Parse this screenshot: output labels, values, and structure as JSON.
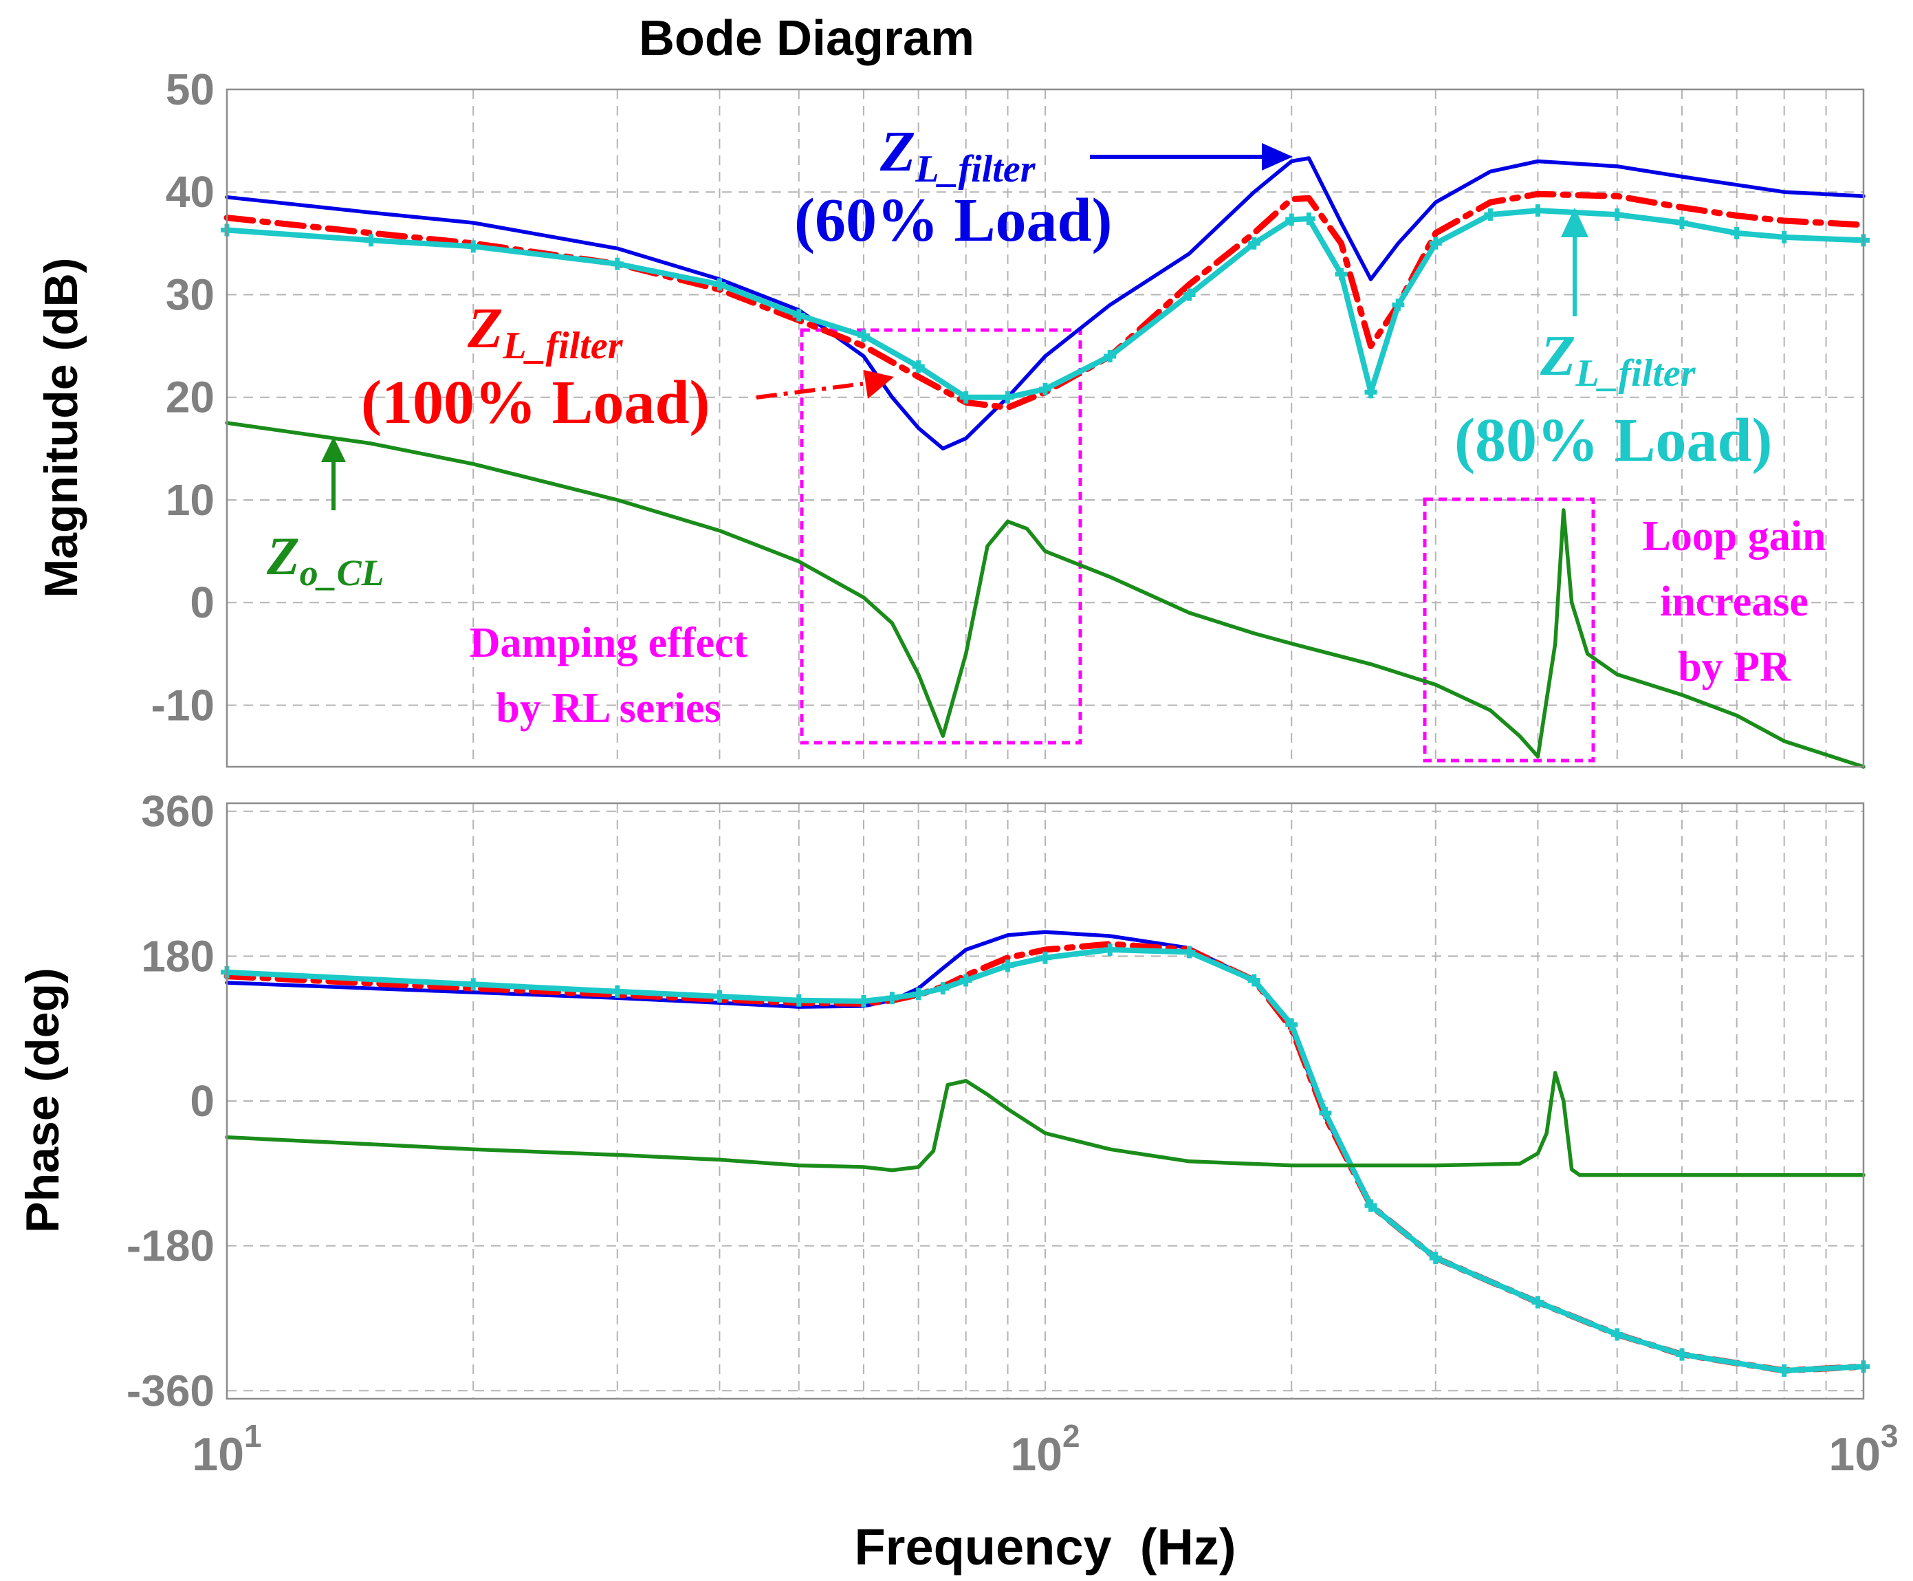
{
  "chart_data": {
    "type": "line",
    "title": "Bode Diagram",
    "xlabel": "Frequency  (Hz)",
    "xscale": "log",
    "xlim": [
      10,
      1000
    ],
    "x_ticks": [
      {
        "value": 10,
        "base": "10",
        "exp": "1"
      },
      {
        "value": 100,
        "base": "10",
        "exp": "2"
      },
      {
        "value": 1000,
        "base": "10",
        "exp": "3"
      }
    ],
    "colors": {
      "zl60": "#0000e6",
      "zl100": "#ff0000",
      "zl80": "#1cc8c8",
      "zocl": "#1a8c1a",
      "box": "#ff00ff",
      "grid": "#b4b4b4",
      "tick": "#808080"
    },
    "panels": [
      {
        "id": "magnitude",
        "ylabel": "Magnitude (dB)",
        "ylim": [
          -16,
          50
        ],
        "yticks": [
          50,
          40,
          30,
          20,
          10,
          0,
          -10
        ],
        "series": [
          {
            "name": "Z_L_filter (60% Load)",
            "color_key": "zl60",
            "style": "solid",
            "x": [
              10,
              15,
              20,
              30,
              40,
              50,
              60,
              65,
              70,
              75,
              80,
              90,
              100,
              120,
              150,
              180,
              200,
              210,
              230,
              250,
              270,
              300,
              350,
              400,
              500,
              600,
              700,
              800,
              1000
            ],
            "y": [
              39.5,
              38,
              37,
              34.5,
              31.5,
              28.5,
              24,
              20,
              17,
              15,
              16,
              20,
              24,
              29,
              34,
              40,
              43,
              43.3,
              37,
              31.5,
              35,
              39,
              42,
              43,
              42.5,
              41.5,
              40.7,
              40,
              39.6
            ]
          },
          {
            "name": "Z_L_filter (100% Load)",
            "color_key": "zl100",
            "style": "dashdot",
            "x": [
              10,
              15,
              20,
              30,
              40,
              50,
              60,
              70,
              80,
              90,
              100,
              120,
              150,
              180,
              200,
              210,
              230,
              250,
              270,
              300,
              350,
              400,
              500,
              600,
              700,
              800,
              1000
            ],
            "y": [
              37.5,
              36,
              35,
              33,
              30.5,
              27.5,
              25,
              22,
              19.5,
              19,
              20.5,
              24,
              31,
              36,
              39.3,
              39.4,
              35,
              25,
              29,
              36,
              39,
              39.8,
              39.6,
              38.5,
              37.7,
              37.2,
              36.8
            ]
          },
          {
            "name": "Z_L_filter (80% Load)",
            "color_key": "zl80",
            "style": "solid-markers",
            "x": [
              10,
              15,
              20,
              30,
              40,
              50,
              60,
              70,
              80,
              90,
              100,
              120,
              150,
              180,
              200,
              210,
              230,
              250,
              270,
              300,
              350,
              400,
              500,
              600,
              700,
              800,
              1000
            ],
            "y": [
              36.3,
              35.3,
              34.7,
              33,
              31,
              28,
              26,
              23,
              20,
              20,
              20.8,
              24,
              30,
              35,
              37.3,
              37.4,
              32,
              20.5,
              29,
              35,
              37.8,
              38.2,
              37.8,
              37,
              36,
              35.6,
              35.3
            ]
          },
          {
            "name": "Z_o_CL",
            "color_key": "zocl",
            "style": "solid",
            "x": [
              10,
              15,
              20,
              30,
              40,
              50,
              60,
              65,
              70,
              75,
              80,
              85,
              90,
              95,
              100,
              120,
              150,
              180,
              200,
              250,
              300,
              350,
              380,
              400,
              420,
              430,
              440,
              460,
              500,
              600,
              700,
              800,
              1000
            ],
            "y": [
              17.5,
              15.5,
              13.5,
              10,
              7,
              4,
              0.5,
              -2,
              -7,
              -13,
              -5,
              5.5,
              7.9,
              7.2,
              5,
              2.5,
              -1,
              -3,
              -4,
              -6,
              -8,
              -10.5,
              -13,
              -15,
              -4,
              9,
              0,
              -5,
              -7,
              -9,
              -11,
              -13.5,
              -16
            ]
          }
        ]
      },
      {
        "id": "phase",
        "ylabel": "Phase (deg)",
        "ylim": [
          -370,
          370
        ],
        "yticks": [
          360,
          180,
          0,
          -180,
          -360
        ],
        "series": [
          {
            "name": "Z_L_filter (60% Load)",
            "color_key": "zl60",
            "style": "solid",
            "x": [
              10,
              20,
              30,
              40,
              50,
              60,
              65,
              70,
              75,
              80,
              90,
              100,
              120,
              150,
              180,
              200,
              220,
              250,
              300,
              400,
              500,
              600,
              800,
              1000
            ],
            "y": [
              147,
              135,
              128,
              122,
              117,
              118,
              125,
              140,
              165,
              188,
              206,
              210,
              205,
              190,
              150,
              90,
              -20,
              -130,
              -195,
              -250,
              -290,
              -315,
              -335,
              -330
            ]
          },
          {
            "name": "Z_L_filter (100% Load)",
            "color_key": "zl100",
            "style": "dashdot",
            "x": [
              10,
              20,
              30,
              40,
              50,
              60,
              65,
              70,
              75,
              80,
              90,
              100,
              120,
              150,
              180,
              200,
              220,
              250,
              300,
              400,
              500,
              600,
              800,
              1000
            ],
            "y": [
              155,
              140,
              132,
              126,
              122,
              121,
              125,
              132,
              142,
              156,
              178,
              188,
              195,
              188,
              150,
              90,
              -20,
              -130,
              -195,
              -250,
              -290,
              -315,
              -335,
              -330
            ]
          },
          {
            "name": "Z_L_filter (80% Load)",
            "color_key": "zl80",
            "style": "solid-markers",
            "x": [
              10,
              20,
              30,
              40,
              50,
              60,
              65,
              70,
              75,
              80,
              90,
              100,
              120,
              150,
              180,
              200,
              220,
              250,
              300,
              400,
              500,
              600,
              800,
              1000
            ],
            "y": [
              160,
              145,
              136,
              130,
              125,
              124,
              128,
              133,
              140,
              150,
              168,
              178,
              188,
              185,
              150,
              95,
              -15,
              -130,
              -195,
              -250,
              -290,
              -315,
              -335,
              -330
            ]
          },
          {
            "name": "Z_o_CL",
            "color_key": "zocl",
            "style": "solid",
            "x": [
              10,
              20,
              30,
              40,
              50,
              60,
              65,
              70,
              73,
              76,
              80,
              85,
              90,
              100,
              120,
              150,
              200,
              300,
              380,
              400,
              410,
              420,
              430,
              440,
              450,
              500,
              700,
              1000
            ],
            "y": [
              -45,
              -60,
              -67,
              -73,
              -80,
              -82,
              -86,
              -82,
              -62,
              20,
              25,
              8,
              -10,
              -40,
              -60,
              -75,
              -80,
              -80,
              -78,
              -65,
              -40,
              35,
              0,
              -85,
              -92,
              -92,
              -92,
              -92
            ]
          }
        ]
      }
    ],
    "annotations": {
      "zl60": {
        "z": "Z",
        "sub": "L_filter",
        "load": "(60% Load)"
      },
      "zl100": {
        "z": "Z",
        "sub": "L_filter",
        "load": "(100% Load)"
      },
      "zl80": {
        "z": "Z",
        "sub": "L_filter",
        "load": "(80% Load)"
      },
      "zocl": {
        "z": "Z",
        "sub": "o_CL"
      },
      "damping": {
        "line1": "Damping effect",
        "line2": "by RL series"
      },
      "loopgain": {
        "line1": "Loop gain",
        "line2": "increase",
        "line3": "by PR"
      }
    }
  }
}
